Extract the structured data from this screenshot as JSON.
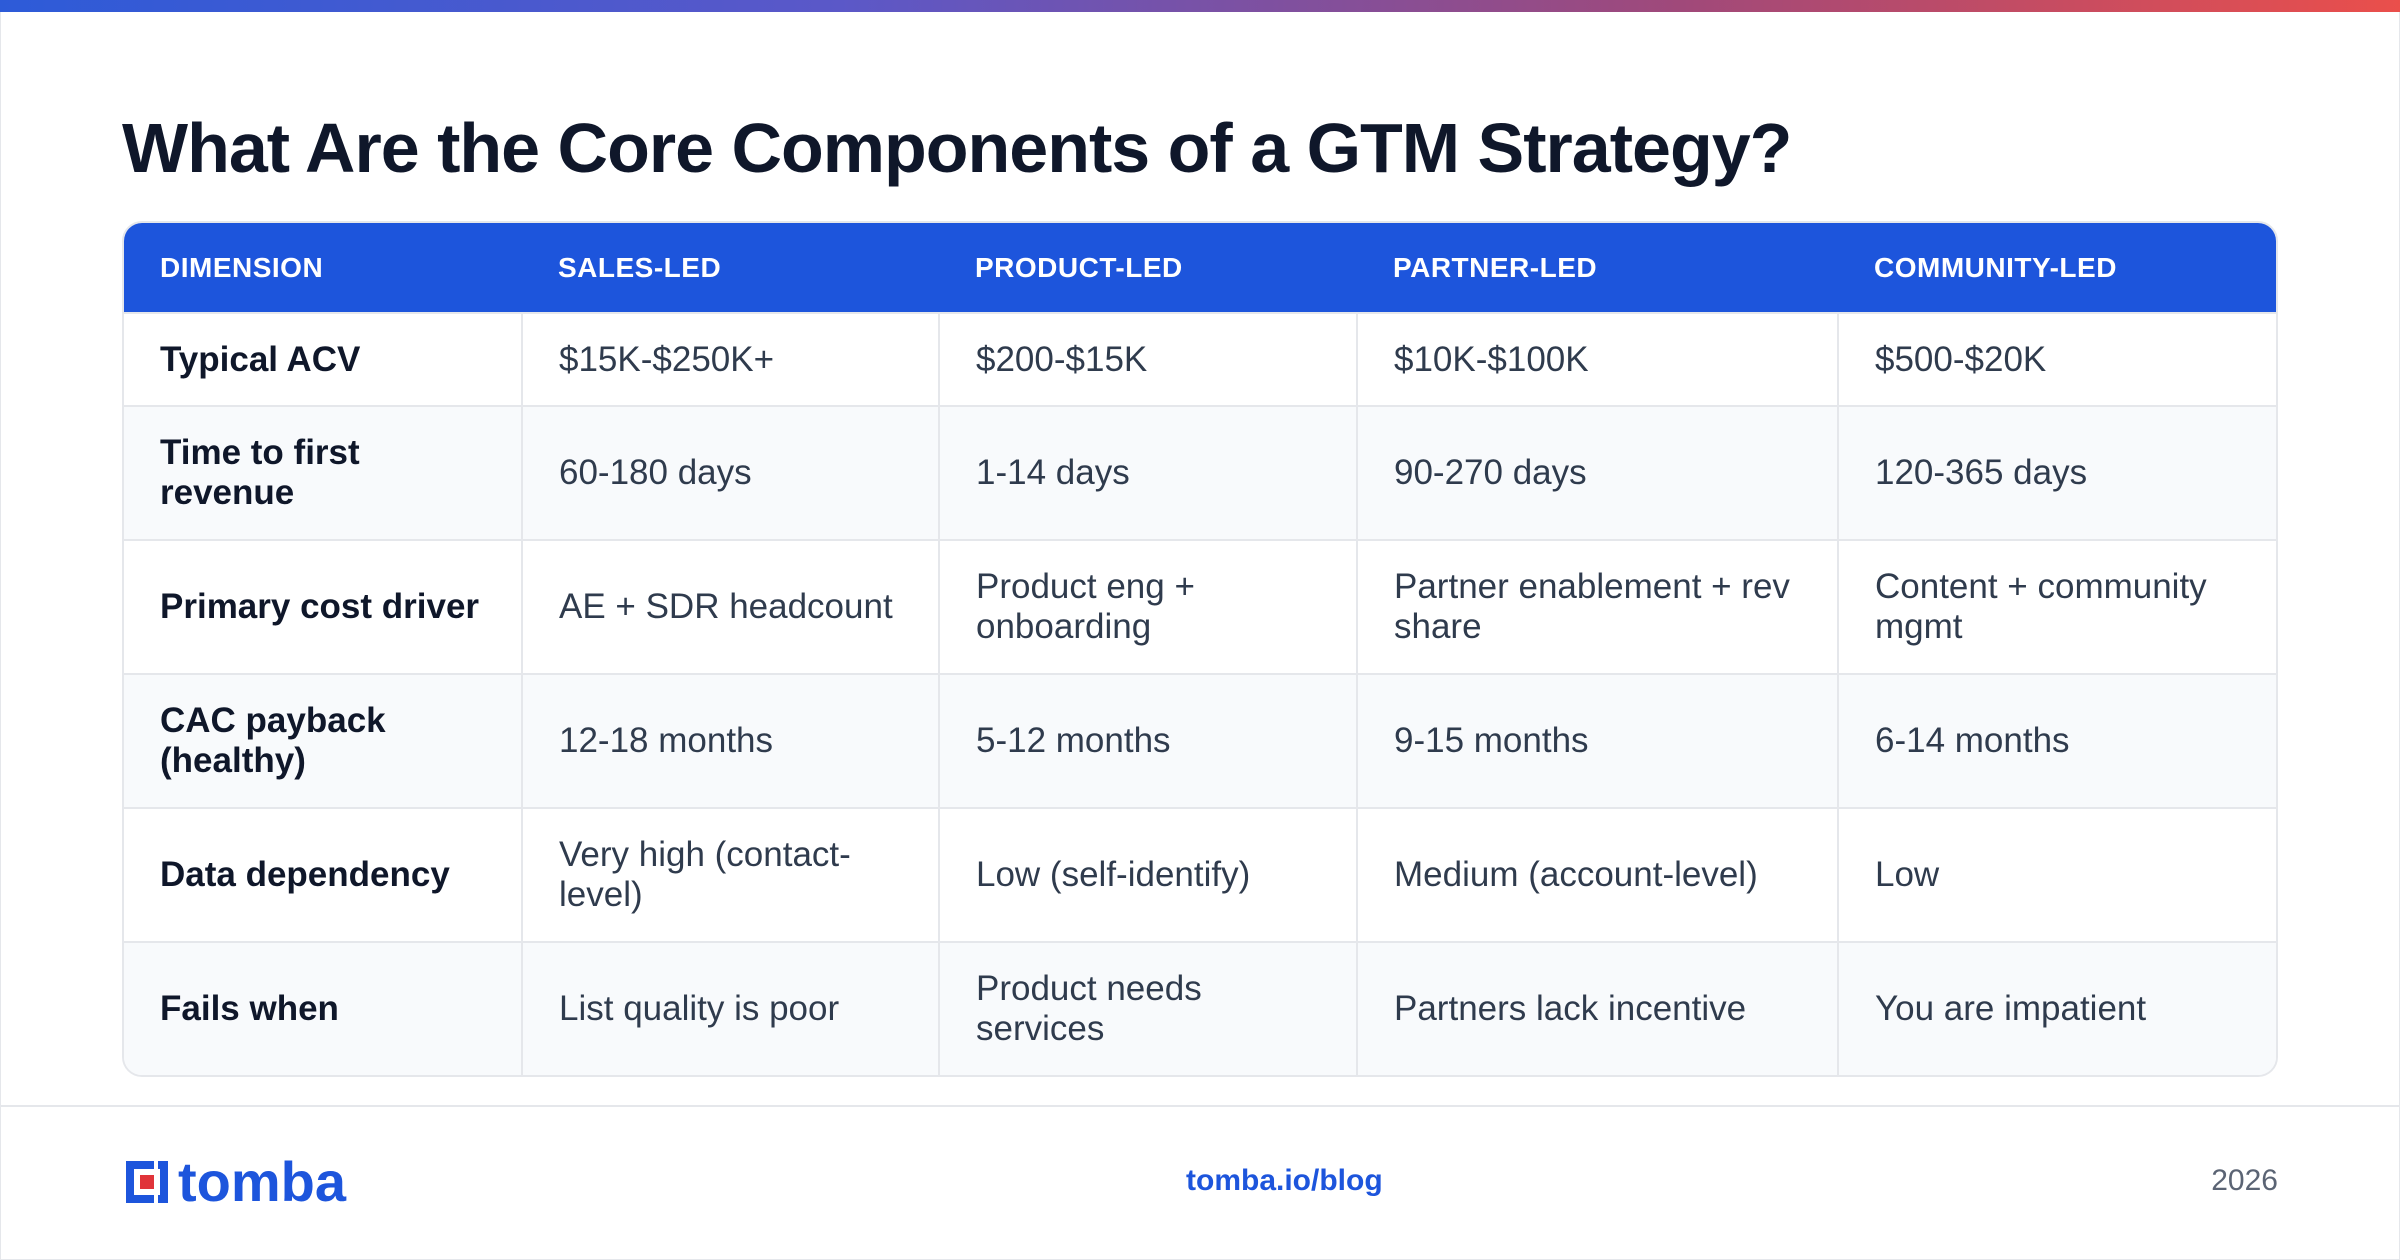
{
  "page": {
    "title": "What Are the Core Components of a GTM Strategy?"
  },
  "table": {
    "headers": [
      "DIMENSION",
      "SALES-LED",
      "PRODUCT-LED",
      "PARTNER-LED",
      "COMMUNITY-LED"
    ],
    "rows": [
      [
        "Typical ACV",
        "$15K-$250K+",
        "$200-$15K",
        "$10K-$100K",
        "$500-$20K"
      ],
      [
        "Time to first revenue",
        "60-180 days",
        "1-14 days",
        "90-270 days",
        "120-365 days"
      ],
      [
        "Primary cost driver",
        "AE + SDR headcount",
        "Product eng + onboarding",
        "Partner enablement + rev share",
        "Content + community mgmt"
      ],
      [
        "CAC payback (healthy)",
        "12-18 months",
        "5-12 months",
        "9-15 months",
        "6-14 months"
      ],
      [
        "Data dependency",
        "Very high (contact-level)",
        "Low (self-identify)",
        "Medium (account-level)",
        "Low"
      ],
      [
        "Fails when",
        "List quality is poor",
        "Product needs services",
        "Partners lack incentive",
        "You are impatient"
      ]
    ]
  },
  "footer": {
    "logo_text": "tomba",
    "logo_icon": "tomba-logo-icon",
    "link": "tomba.io/blog",
    "year": "2026"
  },
  "colors": {
    "accent": "#1d55dc",
    "header_bg": "#1d55dc",
    "logo_red": "#e0343a",
    "gradient_start": "#2d5bd8",
    "gradient_end": "#ea4f4b"
  }
}
